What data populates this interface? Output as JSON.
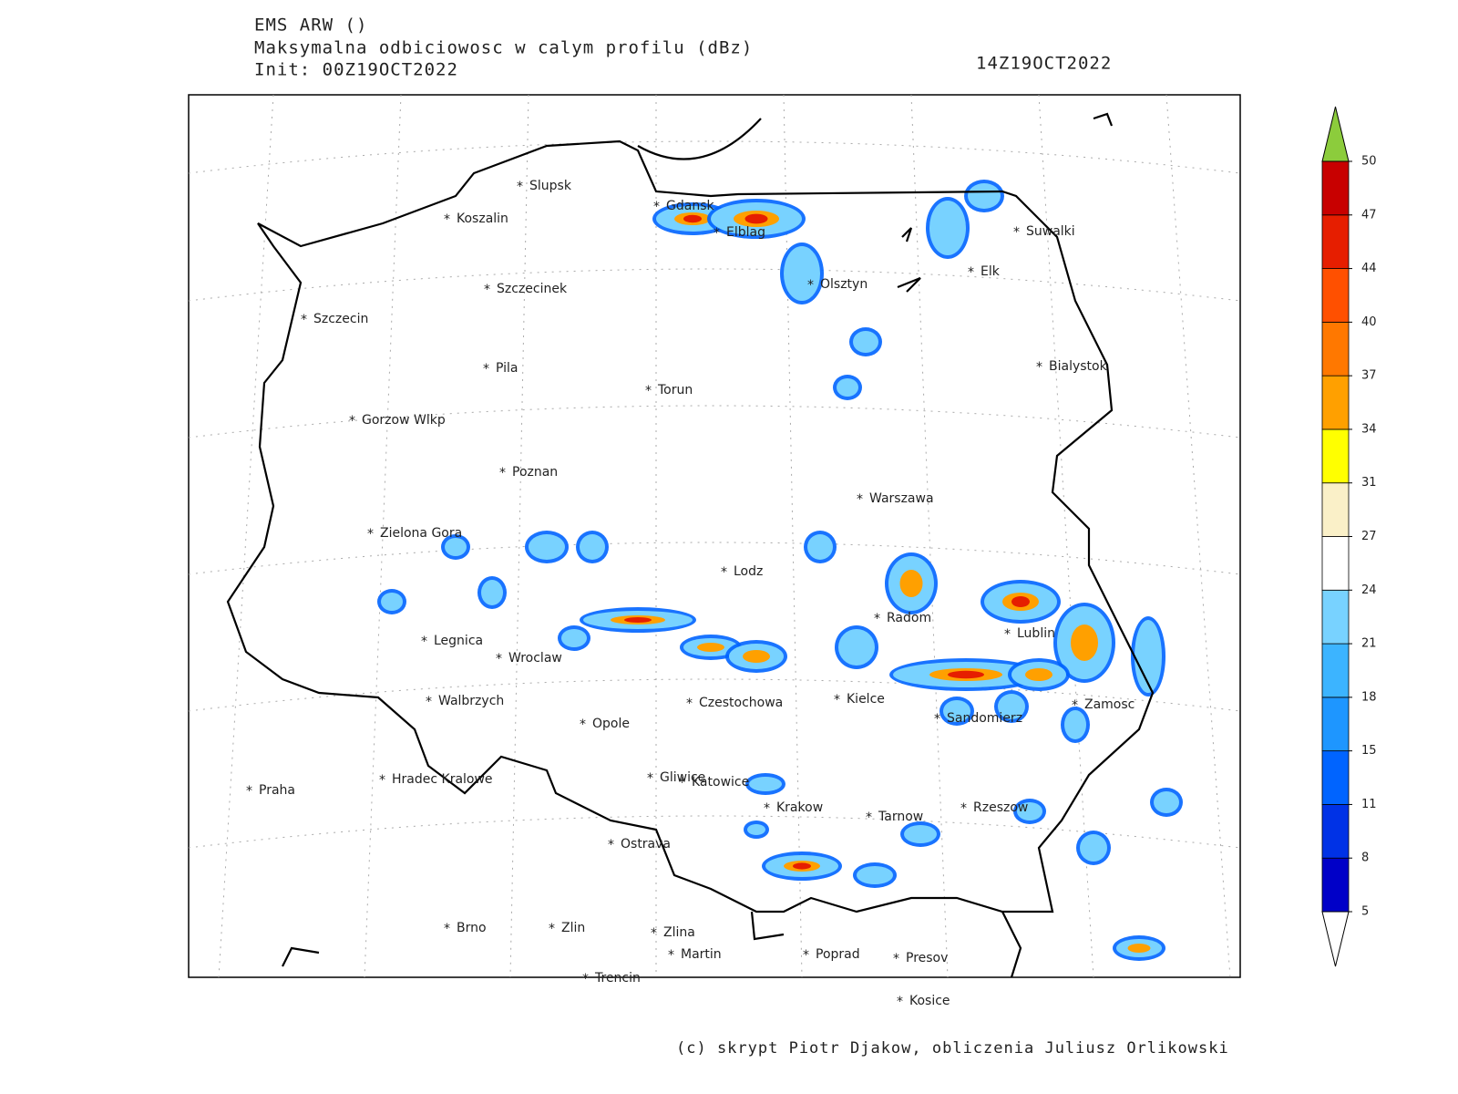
{
  "header": {
    "model": "EMS ARW ()",
    "field": "Maksymalna odbiciowosc w calym profilu (dBz)",
    "init": "Init: 00Z19OCT2022",
    "valid": "14Z19OCT2022"
  },
  "cities": [
    "Slupsk",
    "Koszalin",
    "Szczecinek",
    "Szczecin",
    "Pila",
    "Torun",
    "Gorzow Wlkp",
    "Poznan",
    "Zielona Gora",
    "Legnica",
    "Wroclaw",
    "Walbrzych",
    "Opole",
    "Czestochowa",
    "Lodz",
    "Warszawa",
    "Radom",
    "Kielce",
    "Sandomierz",
    "Lublin",
    "Zamosc",
    "Rzeszow",
    "Tarnow",
    "Krakow",
    "Katowice",
    "Gliwice",
    "Ostrava",
    "Hradec Kralowe",
    "Praha",
    "Brno",
    "Zlin",
    "Zlina",
    "Martin",
    "Poprad",
    "Presov",
    "Kosice",
    "Trencin",
    "Gdansk",
    "Elblag",
    "Olsztyn",
    "Elk",
    "Suwalki",
    "Bialystok"
  ],
  "colorbar": {
    "ticks": [
      5,
      8,
      11,
      15,
      18,
      21,
      24,
      27,
      31,
      34,
      37,
      40,
      44,
      47,
      50
    ],
    "colors": [
      "#0000c8",
      "#0032e6",
      "#0064ff",
      "#1e96ff",
      "#3cb4ff",
      "#78d2ff",
      "#ffffff",
      "#faf0c8",
      "#ffff00",
      "#ffa000",
      "#ff7800",
      "#ff5000",
      "#e61e00",
      "#c80000"
    ],
    "over_color": "#8ccc3c",
    "under_color": "#ffffff"
  },
  "footer": {
    "credit": "(c) skrypt Piotr Djakow, obliczenia Juliusz Orlikowski"
  }
}
